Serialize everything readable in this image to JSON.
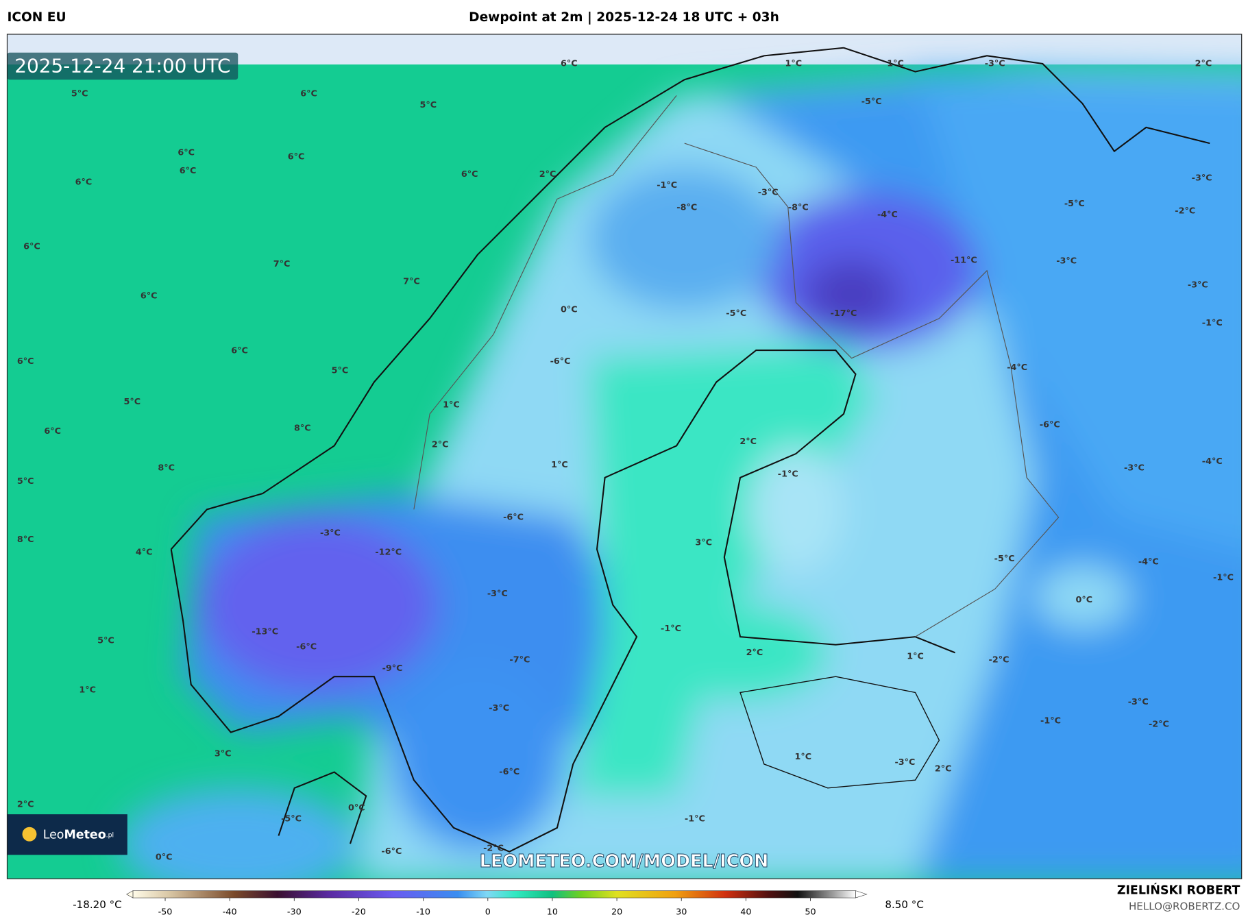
{
  "header": {
    "model": "ICON EU",
    "title": "Dewpoint at 2m | 2025-12-24 18 UTC + 03h"
  },
  "map": {
    "timestamp": "2025-12-24 21:00 UTC",
    "watermark": "LEOMETEO.COM/MODEL/ICON",
    "logo": {
      "light": "Leo",
      "bold": "Meteo",
      "suffix": ".pl"
    },
    "labels": [
      "6°C",
      "1°C",
      "1°C",
      "-3°C",
      "2°C",
      "5°C",
      "6°C",
      "5°C",
      "-5°C",
      "6°C",
      "6°C",
      "6°C",
      "6°C",
      "6°C",
      "2°C",
      "-3°C",
      "-1°C",
      "-3°C",
      "-8°C",
      "-8°C",
      "-4°C",
      "-5°C",
      "-2°C",
      "6°C",
      "7°C",
      "-11°C",
      "-3°C",
      "7°C",
      "-3°C",
      "6°C",
      "0°C",
      "-5°C",
      "-17°C",
      "-1°C",
      "6°C",
      "6°C",
      "-6°C",
      "5°C",
      "-4°C",
      "5°C",
      "1°C",
      "-6°C",
      "6°C",
      "8°C",
      "2°C",
      "2°C",
      "1°C",
      "8°C",
      "-4°C",
      "-3°C",
      "-1°C",
      "5°C",
      "-6°C",
      "-3°C",
      "8°C",
      "3°C",
      "4°C",
      "-12°C",
      "-5°C",
      "-4°C",
      "-1°C",
      "-3°C",
      "0°C",
      "-13°C",
      "-1°C",
      "5°C",
      "-6°C",
      "2°C",
      "1°C",
      "-2°C",
      "-7°C",
      "-9°C",
      "1°C",
      "-3°C",
      "-3°C",
      "-1°C",
      "-2°C",
      "3°C",
      "1°C",
      "-3°C",
      "2°C",
      "-6°C",
      "2°C",
      "0°C",
      "-5°C",
      "-1°C",
      "-2°C",
      "-6°C",
      "0°C"
    ]
  },
  "colorbar": {
    "min_label": "-18.20 °C",
    "max_label": "8.50 °C",
    "range": [
      -55,
      57
    ],
    "ticks": [
      -50,
      -40,
      -30,
      -20,
      -10,
      0,
      10,
      20,
      30,
      40,
      50
    ]
  },
  "credits": {
    "author": "ZIELIŃSKI ROBERT",
    "contact": "HELLO@ROBERTZ.CO"
  }
}
